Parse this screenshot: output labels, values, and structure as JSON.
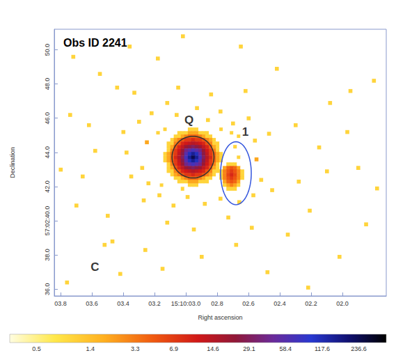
{
  "chart_data": {
    "type": "heatmap",
    "title": "Obs ID 2241",
    "x_label": "Right ascension",
    "y_label": "Declination",
    "xlim": [
      3.84,
      1.72
    ],
    "xticks": [
      {
        "value": 3.8,
        "label": "03.8"
      },
      {
        "value": 3.6,
        "label": "03.6"
      },
      {
        "value": 3.4,
        "label": "03.4"
      },
      {
        "value": 3.2,
        "label": "03.2"
      },
      {
        "value": 3.0,
        "label": "15:10:03.0"
      },
      {
        "value": 2.8,
        "label": "02.8"
      },
      {
        "value": 2.6,
        "label": "02.6"
      },
      {
        "value": 2.4,
        "label": "02.4"
      },
      {
        "value": 2.2,
        "label": "02.2"
      },
      {
        "value": 2.0,
        "label": "02.0"
      }
    ],
    "ylim": [
      35.6,
      51.2
    ],
    "yticks": [
      {
        "value": 36,
        "label": "36.0"
      },
      {
        "value": 38,
        "label": "38.0"
      },
      {
        "value": 40,
        "label": "57:02:40.0"
      },
      {
        "value": 42,
        "label": "42.0"
      },
      {
        "value": 44,
        "label": "44.0"
      },
      {
        "value": 46,
        "label": "46.0"
      },
      {
        "value": 48,
        "label": "48.0"
      },
      {
        "value": 50,
        "label": "50.0"
      }
    ],
    "grid": false,
    "cell_size": [
      0.0224,
      0.204
    ],
    "cells": {
      "x": [
        3.2,
        3.178,
        3.155,
        3.133,
        3.111,
        3.088,
        3.066,
        3.043,
        3.021,
        2.999,
        2.976,
        2.954,
        2.932,
        2.909,
        2.887,
        2.865,
        2.842,
        2.82,
        2.797,
        2.775,
        2.753,
        2.73,
        2.708,
        2.686,
        2.663,
        2.641
      ],
      "y": [
        45.35,
        45.14,
        44.94,
        44.74,
        44.53,
        44.33,
        44.12,
        43.92,
        43.71,
        43.51,
        43.31,
        43.1,
        42.9,
        42.69,
        42.49,
        42.29,
        42.08,
        41.88
      ],
      "counts": [
        [
          0,
          0,
          0,
          1,
          0,
          0,
          0,
          0,
          0,
          0,
          1,
          1,
          1,
          0,
          0,
          0,
          0,
          0,
          0,
          1,
          0,
          0,
          0,
          0,
          0,
          0
        ],
        [
          0,
          1,
          0,
          0,
          0,
          0,
          0,
          1,
          1,
          1,
          2,
          2,
          2,
          1,
          1,
          1,
          0,
          0,
          0,
          0,
          0,
          0,
          1,
          0,
          0,
          0
        ],
        [
          0,
          0,
          0,
          0,
          0,
          0,
          1,
          1,
          2,
          3,
          4,
          4,
          4,
          3,
          2,
          1,
          1,
          0,
          0,
          0,
          0,
          0,
          0,
          0,
          1,
          0
        ],
        [
          0,
          0,
          0,
          0,
          0,
          1,
          2,
          3,
          5,
          7,
          7,
          9,
          7,
          7,
          5,
          3,
          2,
          1,
          0,
          0,
          0,
          0,
          0,
          0,
          0,
          0
        ],
        [
          0,
          0,
          0,
          0,
          1,
          1,
          3,
          5,
          9,
          11,
          13,
          15,
          13,
          11,
          9,
          5,
          3,
          1,
          1,
          0,
          0,
          0,
          0,
          0,
          0,
          0
        ],
        [
          0,
          0,
          0,
          0,
          1,
          2,
          5,
          9,
          13,
          20,
          25,
          30,
          25,
          20,
          13,
          9,
          5,
          2,
          1,
          0,
          0,
          0,
          0,
          1,
          0,
          0
        ],
        [
          0,
          0,
          0,
          0,
          1,
          3,
          7,
          11,
          20,
          40,
          55,
          70,
          55,
          40,
          20,
          11,
          7,
          3,
          1,
          0,
          0,
          0,
          0,
          0,
          0,
          0
        ],
        [
          0,
          0,
          0,
          1,
          2,
          4,
          7,
          13,
          25,
          55,
          110,
          150,
          110,
          55,
          25,
          13,
          7,
          4,
          2,
          1,
          0,
          0,
          0,
          0,
          0,
          0
        ],
        [
          0,
          0,
          0,
          1,
          2,
          4,
          9,
          15,
          30,
          70,
          150,
          240,
          150,
          70,
          30,
          15,
          9,
          4,
          2,
          1,
          0,
          0,
          0,
          0,
          1,
          0
        ],
        [
          0,
          0,
          0,
          1,
          2,
          4,
          7,
          13,
          25,
          55,
          110,
          150,
          110,
          55,
          25,
          13,
          7,
          4,
          2,
          1,
          0,
          0,
          0,
          0,
          0,
          0
        ],
        [
          0,
          0,
          0,
          0,
          1,
          3,
          7,
          11,
          20,
          40,
          55,
          70,
          55,
          40,
          20,
          11,
          7,
          3,
          1,
          0,
          0,
          1,
          1,
          1,
          0,
          0
        ],
        [
          0,
          0,
          0,
          0,
          1,
          2,
          5,
          9,
          13,
          20,
          25,
          30,
          25,
          20,
          13,
          9,
          5,
          2,
          1,
          0,
          2,
          4,
          5,
          4,
          2,
          0
        ],
        [
          0,
          0,
          0,
          0,
          1,
          1,
          3,
          5,
          9,
          11,
          13,
          15,
          13,
          11,
          9,
          5,
          3,
          1,
          1,
          1,
          3,
          5,
          7,
          5,
          3,
          1
        ],
        [
          0,
          0,
          0,
          0,
          0,
          1,
          2,
          3,
          5,
          7,
          7,
          9,
          7,
          7,
          5,
          3,
          2,
          1,
          0,
          1,
          3,
          6,
          9,
          6,
          3,
          1
        ],
        [
          0,
          0,
          0,
          0,
          0,
          0,
          1,
          1,
          2,
          3,
          4,
          4,
          4,
          3,
          2,
          1,
          1,
          0,
          0,
          1,
          3,
          5,
          7,
          5,
          3,
          1
        ],
        [
          0,
          0,
          0,
          0,
          0,
          0,
          0,
          1,
          1,
          1,
          2,
          2,
          2,
          1,
          1,
          1,
          0,
          0,
          0,
          0,
          2,
          4,
          5,
          4,
          2,
          0
        ],
        [
          0,
          0,
          1,
          0,
          0,
          0,
          0,
          0,
          0,
          0,
          1,
          1,
          1,
          0,
          0,
          0,
          0,
          0,
          0,
          0,
          1,
          2,
          3,
          2,
          1,
          0
        ],
        [
          0,
          0,
          0,
          0,
          0,
          0,
          0,
          0,
          1,
          0,
          0,
          0,
          0,
          0,
          0,
          0,
          0,
          0,
          0,
          0,
          0,
          1,
          1,
          1,
          0,
          0
        ]
      ]
    },
    "points": [
      [
        3.25,
        44.6,
        2
      ],
      [
        3.28,
        43.1,
        1
      ],
      [
        3.24,
        42.2,
        1
      ],
      [
        3.3,
        45.8,
        1
      ],
      [
        3.22,
        46.3,
        1
      ],
      [
        3.12,
        46.9,
        1
      ],
      [
        3.06,
        46.2,
        1
      ],
      [
        2.93,
        46.6,
        1
      ],
      [
        2.86,
        45.9,
        1
      ],
      [
        2.78,
        46.4,
        1
      ],
      [
        2.7,
        45.7,
        1
      ],
      [
        2.6,
        46.0,
        1
      ],
      [
        2.56,
        44.7,
        1
      ],
      [
        2.55,
        43.6,
        2
      ],
      [
        2.52,
        42.4,
        1
      ],
      [
        2.57,
        41.5,
        1
      ],
      [
        2.66,
        41.1,
        1
      ],
      [
        2.78,
        41.3,
        1
      ],
      [
        2.88,
        41.0,
        1
      ],
      [
        2.99,
        41.4,
        1
      ],
      [
        3.08,
        40.9,
        1
      ],
      [
        3.17,
        41.5,
        1
      ],
      [
        3.27,
        41.2,
        1
      ],
      [
        3.35,
        42.6,
        1
      ],
      [
        3.38,
        44.0,
        1
      ],
      [
        3.4,
        45.2,
        1
      ],
      [
        2.47,
        45.1,
        1
      ],
      [
        2.45,
        41.8,
        1
      ],
      [
        3.05,
        47.8,
        1
      ],
      [
        2.84,
        47.4,
        1
      ],
      [
        3.33,
        47.5,
        1
      ],
      [
        2.73,
        40.2,
        1
      ],
      [
        3.12,
        39.9,
        1
      ],
      [
        2.95,
        39.5,
        1
      ],
      [
        2.62,
        47.6,
        1
      ],
      [
        3.72,
        49.6,
        1
      ],
      [
        3.55,
        48.6,
        1
      ],
      [
        3.44,
        47.8,
        1
      ],
      [
        3.62,
        45.6,
        1
      ],
      [
        3.74,
        46.2,
        1
      ],
      [
        3.8,
        43.0,
        1
      ],
      [
        3.66,
        42.6,
        1
      ],
      [
        3.7,
        40.9,
        1
      ],
      [
        3.5,
        40.3,
        1
      ],
      [
        3.52,
        38.6,
        1
      ],
      [
        3.76,
        36.4,
        1
      ],
      [
        3.42,
        36.9,
        1
      ],
      [
        3.26,
        38.3,
        1
      ],
      [
        3.15,
        37.2,
        1
      ],
      [
        2.9,
        37.9,
        1
      ],
      [
        2.68,
        38.6,
        1
      ],
      [
        2.48,
        37.0,
        1
      ],
      [
        2.35,
        39.2,
        1
      ],
      [
        2.21,
        40.6,
        1
      ],
      [
        2.28,
        42.3,
        1
      ],
      [
        2.15,
        44.3,
        1
      ],
      [
        2.3,
        45.6,
        1
      ],
      [
        2.08,
        46.9,
        1
      ],
      [
        1.95,
        47.6,
        1
      ],
      [
        1.8,
        48.2,
        1
      ],
      [
        2.42,
        48.9,
        1
      ],
      [
        2.65,
        50.2,
        1
      ],
      [
        3.02,
        50.8,
        1
      ],
      [
        3.18,
        49.5,
        1
      ],
      [
        3.36,
        50.2,
        1
      ],
      [
        1.9,
        43.1,
        1
      ],
      [
        1.78,
        41.9,
        1
      ],
      [
        1.85,
        39.8,
        1
      ],
      [
        2.02,
        37.9,
        1
      ],
      [
        2.22,
        36.1,
        1
      ],
      [
        1.97,
        45.2,
        1
      ],
      [
        3.58,
        44.1,
        1
      ],
      [
        3.47,
        38.8,
        1
      ],
      [
        2.58,
        39.6,
        1
      ],
      [
        2.1,
        42.9,
        1
      ]
    ],
    "colorbar": {
      "range": [
        0.3,
        400
      ],
      "ticks": [
        0.5,
        1.4,
        3.3,
        6.9,
        14.6,
        29.1,
        58.4,
        117.6,
        236.6
      ],
      "log": true
    },
    "regions": [
      {
        "x": 2.954,
        "y": 43.72,
        "radii": [
          0.134,
          1.22
        ],
        "color": "#333333"
      },
      {
        "x": 2.68,
        "y": 42.78,
        "radii": [
          0.098,
          1.84
        ],
        "color": "#3355dd"
      }
    ],
    "annotations": [
      {
        "text": "Q",
        "x": 2.98,
        "y": 45.9
      },
      {
        "text": "1",
        "x": 2.62,
        "y": 45.2
      },
      {
        "text": "C",
        "x": 3.58,
        "y": 37.3
      }
    ]
  }
}
